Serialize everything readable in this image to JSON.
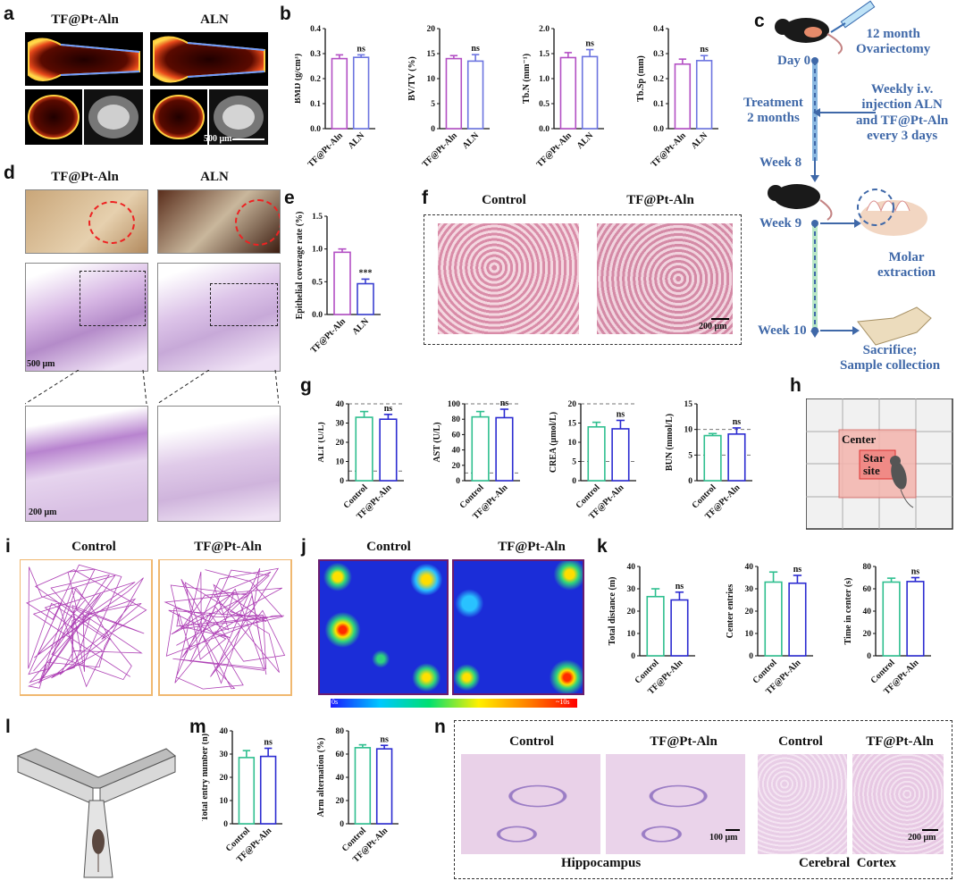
{
  "panels": [
    "a",
    "b",
    "c",
    "d",
    "e",
    "f",
    "g",
    "h",
    "i",
    "j",
    "k",
    "l",
    "m",
    "n"
  ],
  "a": {
    "left": "TF@Pt-Aln",
    "right": "ALN",
    "scale": "500 μm"
  },
  "b": {
    "charts": [
      {
        "ylabel": "BMD (g/cm³)",
        "ylim": [
          0,
          0.4
        ],
        "ticks": [
          "0.0",
          "0.1",
          "0.2",
          "0.3",
          "0.4"
        ],
        "values": [
          0.28,
          0.285
        ],
        "errors": [
          0.015,
          0.01
        ],
        "sig": "ns"
      },
      {
        "ylabel": "BV/TV (%)",
        "ylim": [
          0,
          20
        ],
        "ticks": [
          "0",
          "5",
          "10",
          "15",
          "20"
        ],
        "values": [
          14,
          13.5
        ],
        "errors": [
          0.6,
          1.3
        ],
        "sig": "ns"
      },
      {
        "ylabel": "Tb.N (mm⁻¹)",
        "ylim": [
          0,
          2.0
        ],
        "ticks": [
          "0.0",
          "0.5",
          "1.0",
          "1.5",
          "2.0"
        ],
        "values": [
          1.42,
          1.44
        ],
        "errors": [
          0.1,
          0.14
        ],
        "sig": "ns"
      },
      {
        "ylabel": "Tb.Sp (mm)",
        "ylim": [
          0,
          0.4
        ],
        "ticks": [
          "0.0",
          "0.1",
          "0.2",
          "0.3",
          "0.4"
        ],
        "values": [
          0.258,
          0.272
        ],
        "errors": [
          0.02,
          0.02
        ],
        "sig": "ns"
      }
    ],
    "categories": [
      "TF@Pt-Aln",
      "ALN"
    ],
    "colors": [
      "#b34fc4",
      "#6c74e0"
    ]
  },
  "c": {
    "ovx": "12 month\nOvariectomy",
    "day0": "Day 0",
    "treatment": "Treatment\n2 months",
    "injection": "Weekly i.v.\ninjection ALN\nand TF@Pt-Aln\nevery 3 days",
    "week8": "Week 8",
    "week9": "Week 9",
    "extraction": "Molar\nextraction",
    "week10": "Week 10",
    "sacrifice": "Sacrifice;\nSample collection"
  },
  "d": {
    "left": "TF@Pt-Aln",
    "right": "ALN",
    "scale1": "500 μm",
    "scale2": "200 μm"
  },
  "e": {
    "ylabel": "Epithelial coverage rate (%)",
    "ylim": [
      0,
      1.5
    ],
    "ticks": [
      "0.0",
      "0.5",
      "1.0",
      "1.5"
    ],
    "categories": [
      "TF@Pt-Aln",
      "ALN"
    ],
    "values": [
      0.95,
      0.47
    ],
    "errors": [
      0.05,
      0.07
    ],
    "sig": "***",
    "colors": [
      "#b34fc4",
      "#3b40d0"
    ]
  },
  "f": {
    "left": "Control",
    "right": "TF@Pt-Aln",
    "scale": "200 μm"
  },
  "g": {
    "categories": [
      "Control",
      "TF@Pt-Aln"
    ],
    "colors": [
      "#2fbf8f",
      "#2b2bd1"
    ],
    "charts": [
      {
        "ylabel": "ALT (U/L)",
        "ylim": [
          0,
          40
        ],
        "ticks": [
          "0",
          "10",
          "20",
          "30",
          "40"
        ],
        "values": [
          33,
          32
        ],
        "errors": [
          3,
          2.5
        ],
        "sig": "ns",
        "refs": [
          5,
          40
        ]
      },
      {
        "ylabel": "AST (U/L)",
        "ylim": [
          0,
          100
        ],
        "ticks": [
          "0",
          "20",
          "40",
          "60",
          "80",
          "100"
        ],
        "values": [
          83,
          82
        ],
        "errors": [
          7,
          11
        ],
        "sig": "ns",
        "refs": [
          10,
          100
        ]
      },
      {
        "ylabel": "CREA (μmol/L)",
        "ylim": [
          0,
          20
        ],
        "ticks": [
          "0",
          "5",
          "10",
          "15",
          "20"
        ],
        "values": [
          14,
          13.5
        ],
        "errors": [
          1.2,
          2.2
        ],
        "sig": "ns",
        "refs": [
          5,
          20
        ]
      },
      {
        "ylabel": "BUN (mmol/L)",
        "ylim": [
          0,
          15
        ],
        "ticks": [
          "0",
          "5",
          "10",
          "15"
        ],
        "values": [
          8.8,
          9.1
        ],
        "errors": [
          0.4,
          1.2
        ],
        "sig": "ns",
        "refs": [
          5,
          10
        ]
      }
    ]
  },
  "h": {
    "center": "Center",
    "star": "Star\nsite"
  },
  "i": {
    "left": "Control",
    "right": "TF@Pt-Aln"
  },
  "j": {
    "left": "Control",
    "right": "TF@Pt-Aln",
    "lo": "0s",
    "hi": "~10s"
  },
  "k": {
    "categories": [
      "Control",
      "TF@Pt-Aln"
    ],
    "colors": [
      "#2fbf8f",
      "#2b2bd1"
    ],
    "charts": [
      {
        "ylabel": "Total distance (m)",
        "ylim": [
          0,
          40
        ],
        "ticks": [
          "0",
          "10",
          "20",
          "30",
          "40"
        ],
        "values": [
          26.5,
          25
        ],
        "errors": [
          3.5,
          3.5
        ],
        "sig": "ns"
      },
      {
        "ylabel": "Center entries",
        "ylim": [
          0,
          40
        ],
        "ticks": [
          "0",
          "10",
          "20",
          "30",
          "40"
        ],
        "values": [
          33,
          32.5
        ],
        "errors": [
          4.5,
          3.5
        ],
        "sig": "ns"
      },
      {
        "ylabel": "Time in center (s)",
        "ylim": [
          0,
          80
        ],
        "ticks": [
          "0",
          "20",
          "40",
          "60",
          "80"
        ],
        "values": [
          66,
          66.5
        ],
        "errors": [
          3.5,
          3.5
        ],
        "sig": "ns"
      }
    ]
  },
  "m": {
    "categories": [
      "Control",
      "TF@Pt-Aln"
    ],
    "colors": [
      "#2fbf8f",
      "#2b2bd1"
    ],
    "charts": [
      {
        "ylabel": "Total entry number (n)",
        "ylim": [
          0,
          40
        ],
        "ticks": [
          "0",
          "10",
          "20",
          "30",
          "40"
        ],
        "values": [
          28.5,
          29
        ],
        "errors": [
          3,
          3.5
        ],
        "sig": "ns"
      },
      {
        "ylabel": "Arm alternation (%)",
        "ylim": [
          0,
          80
        ],
        "ticks": [
          "0",
          "20",
          "40",
          "60",
          "80"
        ],
        "values": [
          65.5,
          64.5
        ],
        "errors": [
          2.5,
          3
        ],
        "sig": "ns"
      }
    ]
  },
  "n": {
    "c1": "Control",
    "t1": "TF@Pt-Aln",
    "c2": "Control",
    "t2": "TF@Pt-Aln",
    "scale1": "100 μm",
    "scale2": "200 μm",
    "hippo": "Hippocampus",
    "cortex": "Cerebral  Cortex"
  }
}
